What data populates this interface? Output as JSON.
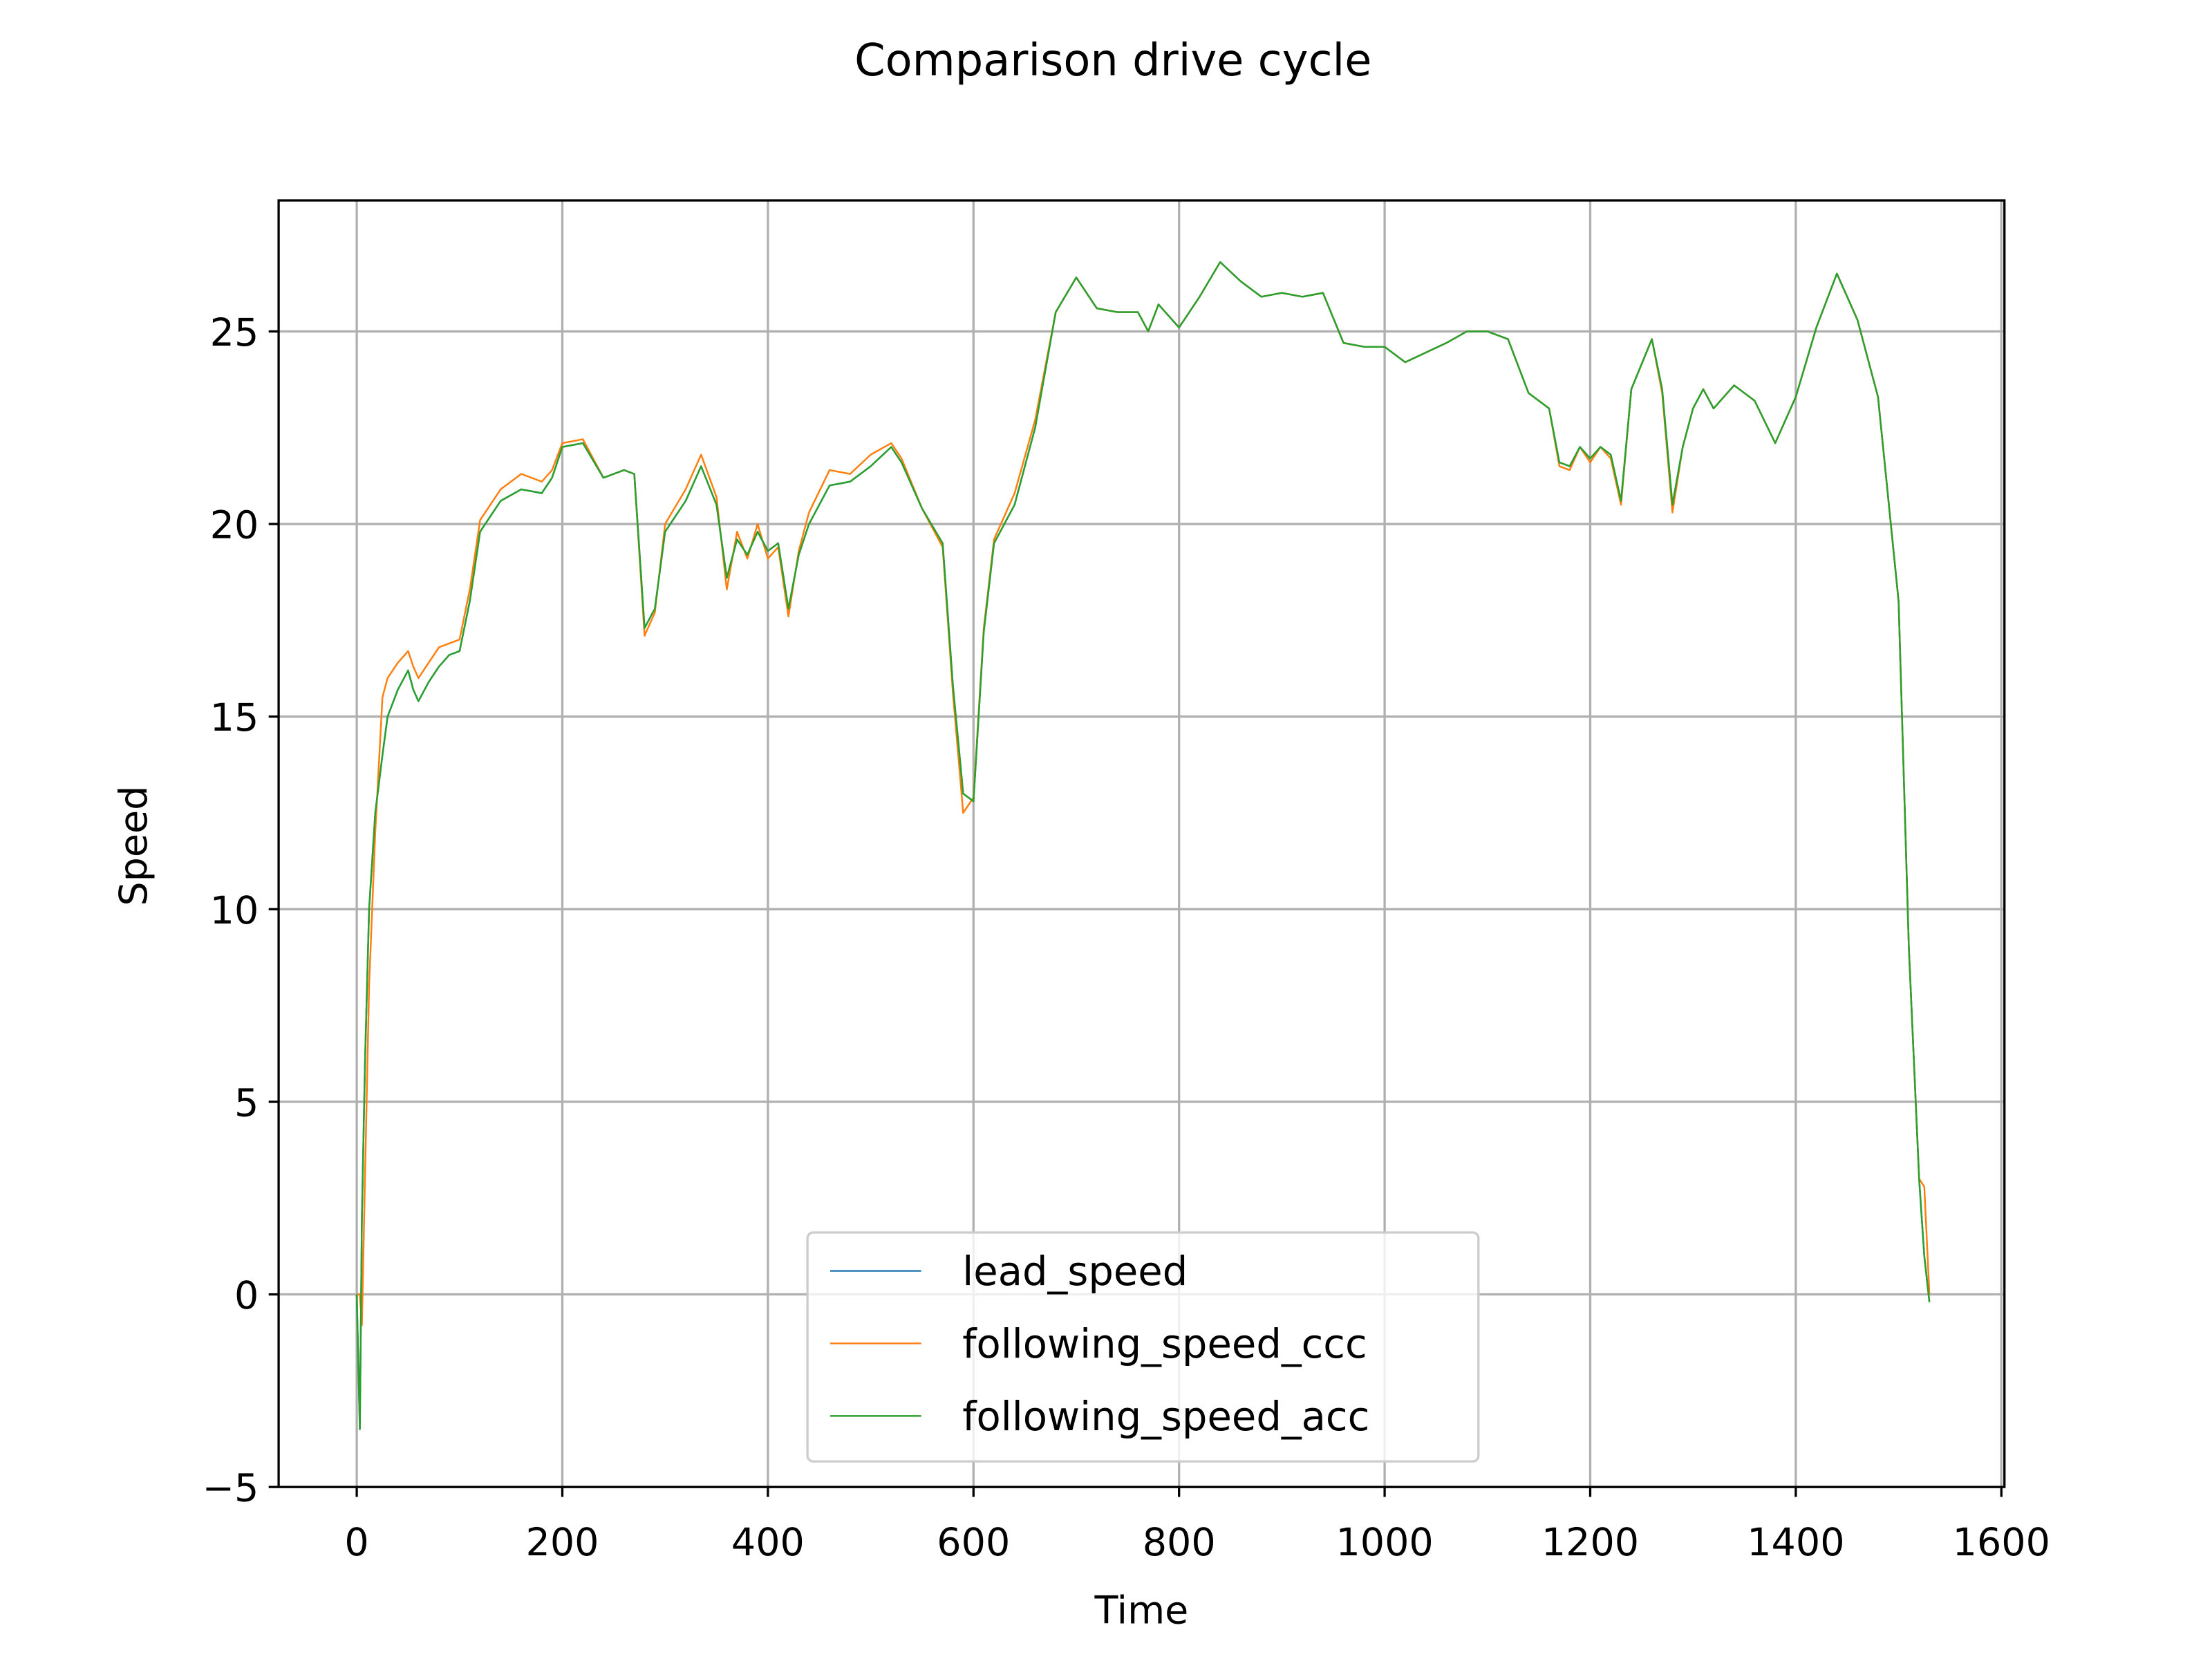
{
  "chart_data": {
    "type": "line",
    "title": "Comparison drive cycle",
    "xlabel": "Time",
    "ylabel": "Speed",
    "x": [
      0,
      3,
      5,
      8,
      12,
      18,
      25,
      30,
      40,
      50,
      55,
      60,
      70,
      80,
      90,
      100,
      110,
      120,
      140,
      160,
      180,
      190,
      200,
      220,
      240,
      260,
      270,
      280,
      290,
      300,
      320,
      335,
      350,
      360,
      370,
      380,
      390,
      400,
      410,
      420,
      430,
      440,
      460,
      480,
      500,
      520,
      530,
      550,
      570,
      580,
      590,
      600,
      610,
      620,
      640,
      660,
      680,
      700,
      720,
      740,
      760,
      770,
      780,
      800,
      820,
      840,
      860,
      880,
      900,
      920,
      940,
      960,
      980,
      1000,
      1020,
      1060,
      1080,
      1100,
      1120,
      1140,
      1160,
      1170,
      1180,
      1190,
      1200,
      1210,
      1220,
      1230,
      1240,
      1260,
      1270,
      1280,
      1290,
      1300,
      1310,
      1320,
      1340,
      1360,
      1380,
      1400,
      1420,
      1440,
      1460,
      1480,
      1500,
      1510,
      1520,
      1525,
      1530
    ],
    "series": [
      {
        "name": "lead_speed",
        "color": "#1f77b4",
        "values": [
          0,
          -3.5,
          2,
          6,
          10,
          12.5,
          14,
          15,
          15.7,
          16.2,
          15.7,
          15.4,
          15.9,
          16.3,
          16.6,
          16.7,
          18,
          19.8,
          20.6,
          20.9,
          20.8,
          21.2,
          22,
          22.1,
          21.2,
          21.4,
          21.3,
          17.3,
          17.8,
          19.8,
          20.6,
          21.5,
          20.5,
          18.6,
          19.6,
          19.2,
          19.8,
          19.3,
          19.5,
          17.8,
          19.2,
          20,
          21,
          21.1,
          21.5,
          22,
          21.6,
          20.4,
          19.5,
          15.8,
          13,
          12.8,
          17.2,
          19.5,
          20.5,
          22.5,
          25.5,
          26.4,
          25.6,
          25.5,
          25.5,
          25,
          25.7,
          25.1,
          25.9,
          26.8,
          26.3,
          25.9,
          26,
          25.9,
          26,
          24.7,
          24.6,
          24.6,
          24.2,
          24.7,
          25,
          25,
          24.8,
          23.4,
          23,
          21.6,
          21.5,
          22,
          21.7,
          22,
          21.8,
          20.6,
          23.5,
          24.8,
          23.5,
          20.5,
          22,
          23,
          23.5,
          23,
          23.6,
          23.2,
          22.1,
          23.3,
          25.1,
          26.5,
          25.3,
          23.3,
          18,
          9,
          3,
          1,
          -0.2
        ]
      },
      {
        "name": "following_speed_ccc",
        "color": "#ff7f0e",
        "values": [
          0,
          0,
          -0.8,
          3,
          8,
          12,
          15.5,
          16,
          16.4,
          16.7,
          16.3,
          16,
          16.4,
          16.8,
          16.9,
          17,
          18.3,
          20.1,
          20.9,
          21.3,
          21.1,
          21.4,
          22.1,
          22.2,
          21.2,
          21.4,
          21.3,
          17.1,
          17.7,
          20,
          20.9,
          21.8,
          20.7,
          18.3,
          19.8,
          19.1,
          20,
          19.1,
          19.4,
          17.6,
          19.3,
          20.3,
          21.4,
          21.3,
          21.8,
          22.1,
          21.7,
          20.4,
          19.4,
          15.6,
          12.5,
          12.9,
          17.3,
          19.6,
          20.8,
          22.7,
          25.5,
          26.4,
          25.6,
          25.5,
          25.5,
          25,
          25.7,
          25.1,
          25.9,
          26.8,
          26.3,
          25.9,
          26,
          25.9,
          26,
          24.7,
          24.6,
          24.6,
          24.2,
          24.7,
          25,
          25,
          24.8,
          23.4,
          23,
          21.5,
          21.4,
          22,
          21.6,
          22,
          21.7,
          20.5,
          23.5,
          24.8,
          23.4,
          20.3,
          22,
          23,
          23.5,
          23,
          23.6,
          23.2,
          22.1,
          23.3,
          25.1,
          26.5,
          25.3,
          23.3,
          18,
          9,
          3,
          2.8,
          0
        ]
      },
      {
        "name": "following_speed_acc",
        "color": "#2ca02c",
        "values": [
          0,
          -3.5,
          2,
          6,
          10,
          12.5,
          14,
          15,
          15.7,
          16.2,
          15.7,
          15.4,
          15.9,
          16.3,
          16.6,
          16.7,
          18,
          19.8,
          20.6,
          20.9,
          20.8,
          21.2,
          22,
          22.1,
          21.2,
          21.4,
          21.3,
          17.3,
          17.8,
          19.8,
          20.6,
          21.5,
          20.5,
          18.6,
          19.6,
          19.2,
          19.8,
          19.3,
          19.5,
          17.8,
          19.2,
          20,
          21,
          21.1,
          21.5,
          22,
          21.6,
          20.4,
          19.5,
          15.8,
          13,
          12.8,
          17.2,
          19.5,
          20.5,
          22.5,
          25.5,
          26.4,
          25.6,
          25.5,
          25.5,
          25,
          25.7,
          25.1,
          25.9,
          26.8,
          26.3,
          25.9,
          26,
          25.9,
          26,
          24.7,
          24.6,
          24.6,
          24.2,
          24.7,
          25,
          25,
          24.8,
          23.4,
          23,
          21.6,
          21.5,
          22,
          21.7,
          22,
          21.8,
          20.6,
          23.5,
          24.8,
          23.5,
          20.5,
          22,
          23,
          23.5,
          23,
          23.6,
          23.2,
          22.1,
          23.3,
          25.1,
          26.5,
          25.3,
          23.3,
          18,
          9,
          3,
          1,
          -0.2
        ]
      }
    ],
    "xlim": [
      -76,
      1603
    ],
    "ylim": [
      -5.0,
      28.4
    ],
    "xticks": [
      0,
      200,
      400,
      600,
      800,
      1000,
      1200,
      1400,
      1600
    ],
    "yticks": [
      {
        "value": -5,
        "label": "−5"
      },
      0,
      5,
      10,
      15,
      20,
      25
    ],
    "grid": true,
    "legend": "lower center"
  }
}
